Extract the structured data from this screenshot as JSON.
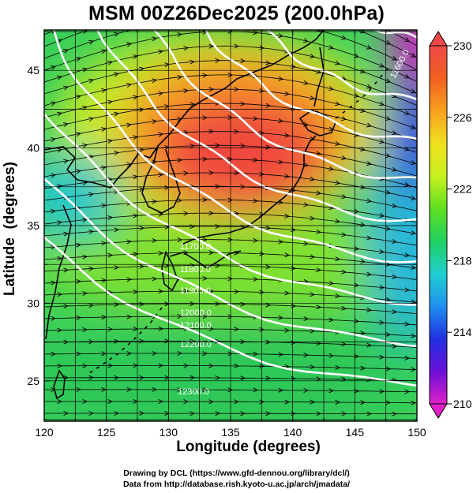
{
  "title": "MSM 00Z26Dec2025 (200.0hPa)",
  "chart_data": {
    "type": "heatmap",
    "title": "MSM 00Z26Dec2025 (200.0hPa)",
    "xlabel": "Longitude (degrees)",
    "ylabel": "Latitude  (degrees)",
    "xlim": [
      120,
      150
    ],
    "ylim": [
      22.4,
      47.6
    ],
    "x_ticks": [
      "120",
      "125",
      "130",
      "135",
      "140",
      "145",
      "150"
    ],
    "y_ticks": [
      "25",
      "30",
      "35",
      "40",
      "45"
    ],
    "grid": true,
    "colorbar": {
      "min": 210,
      "max": 230,
      "ticks": [
        "210",
        "214",
        "218",
        "222",
        "226",
        "230"
      ],
      "colors": [
        "#e020c8",
        "#6a10d8",
        "#2030e0",
        "#2090f0",
        "#20d0d0",
        "#20d060",
        "#60e020",
        "#c8f020",
        "#f0e020",
        "#f8a020",
        "#f06020",
        "#f04848"
      ],
      "end_arrows": true
    },
    "shaded_field": "temperature (K)",
    "vectors": "wind (arrowed streamlines)",
    "contour_field": "geopotential height",
    "contour_labels": [
      "11600.0",
      "11700.0",
      "11800.0",
      "11900.0",
      "12000.0",
      "12100.0",
      "12200.0",
      "12300.0"
    ],
    "warm_core": {
      "center_lon": 136,
      "center_lat": 40.5,
      "value": 229
    },
    "cold_region": {
      "center_lon": 149,
      "center_lat": 45,
      "value": 210
    }
  },
  "credits": {
    "line1": "Drawing by DCL (https://www.gfd-dennou.org/library/dcl/)",
    "line2": "Data from http://database.rish.kyoto-u.ac.jp/arch/jmadata/"
  }
}
